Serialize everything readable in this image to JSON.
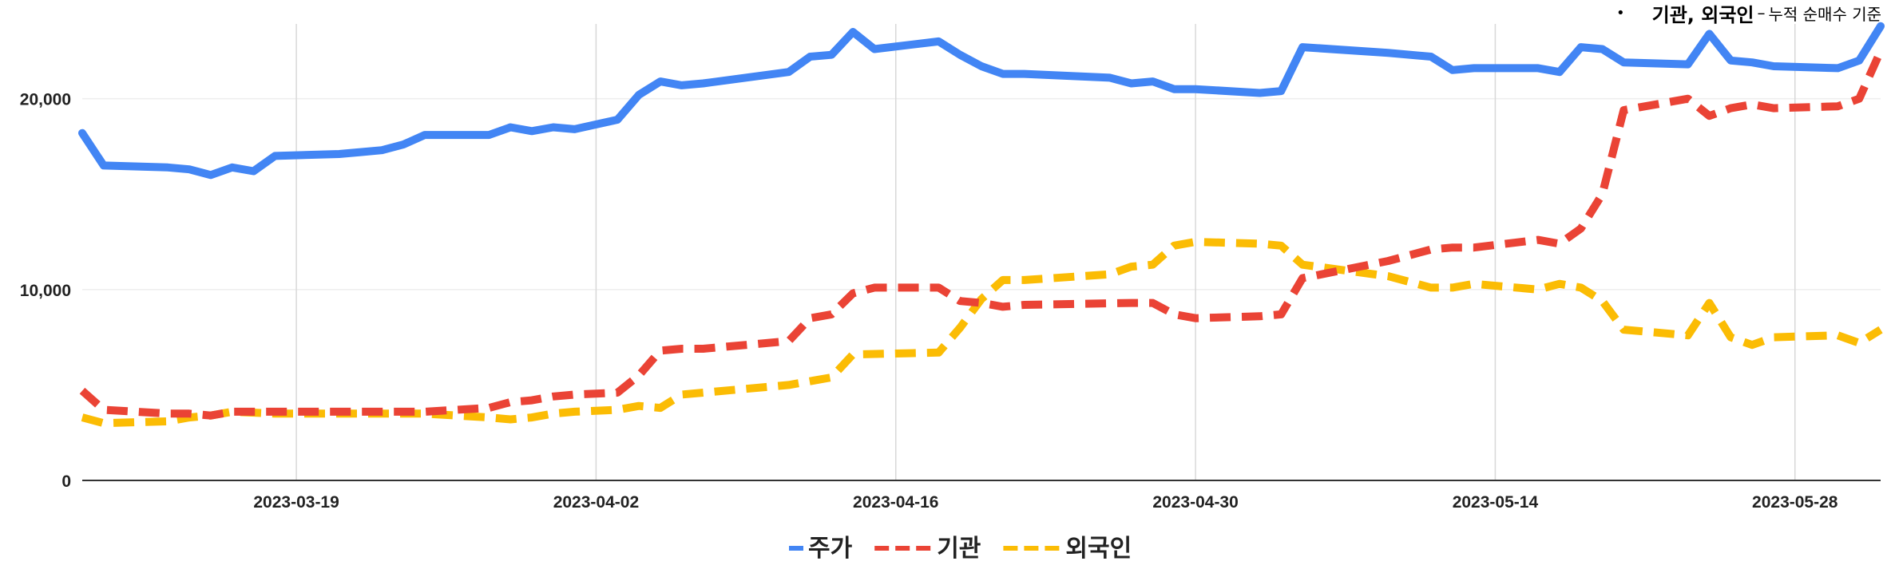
{
  "annotation": {
    "main": "기관, 외국인",
    "dash": "–",
    "sub": "누적 순매수 기준"
  },
  "chart_data": {
    "type": "line",
    "x_ticks": [
      "2023-03-19",
      "2023-04-02",
      "2023-04-16",
      "2023-04-30",
      "2023-05-14",
      "2023-05-28"
    ],
    "y_ticks": [
      "0",
      "10,000",
      "20,000"
    ],
    "ylim": [
      0,
      24000
    ],
    "xlim": [
      "2023-03-09",
      "2023-06-01"
    ],
    "grid": true,
    "legend_position": "bottom",
    "series": [
      {
        "name": "주가",
        "color": "#4285F4",
        "style": "solid",
        "points": [
          [
            "2023-03-09",
            18200
          ],
          [
            "2023-03-10",
            16500
          ],
          [
            "2023-03-13",
            16400
          ],
          [
            "2023-03-14",
            16300
          ],
          [
            "2023-03-15",
            16000
          ],
          [
            "2023-03-16",
            16400
          ],
          [
            "2023-03-17",
            16200
          ],
          [
            "2023-03-18",
            17000
          ],
          [
            "2023-03-21",
            17100
          ],
          [
            "2023-03-22",
            17200
          ],
          [
            "2023-03-23",
            17300
          ],
          [
            "2023-03-24",
            17600
          ],
          [
            "2023-03-25",
            18100
          ],
          [
            "2023-03-28",
            18100
          ],
          [
            "2023-03-29",
            18500
          ],
          [
            "2023-03-30",
            18300
          ],
          [
            "2023-03-31",
            18500
          ],
          [
            "2023-04-01",
            18400
          ],
          [
            "2023-04-03",
            18900
          ],
          [
            "2023-04-04",
            20200
          ],
          [
            "2023-04-05",
            20900
          ],
          [
            "2023-04-06",
            20700
          ],
          [
            "2023-04-07",
            20800
          ],
          [
            "2023-04-11",
            21400
          ],
          [
            "2023-04-12",
            22200
          ],
          [
            "2023-04-13",
            22300
          ],
          [
            "2023-04-14",
            23500
          ],
          [
            "2023-04-15",
            22600
          ],
          [
            "2023-04-18",
            23000
          ],
          [
            "2023-04-19",
            22300
          ],
          [
            "2023-04-20",
            21700
          ],
          [
            "2023-04-21",
            21300
          ],
          [
            "2023-04-22",
            21300
          ],
          [
            "2023-04-26",
            21100
          ],
          [
            "2023-04-27",
            20800
          ],
          [
            "2023-04-28",
            20900
          ],
          [
            "2023-04-29",
            20500
          ],
          [
            "2023-04-30",
            20500
          ],
          [
            "2023-05-03",
            20300
          ],
          [
            "2023-05-04",
            20400
          ],
          [
            "2023-05-05",
            22700
          ],
          [
            "2023-05-09",
            22400
          ],
          [
            "2023-05-11",
            22200
          ],
          [
            "2023-05-12",
            21500
          ],
          [
            "2023-05-13",
            21600
          ],
          [
            "2023-05-16",
            21600
          ],
          [
            "2023-05-17",
            21400
          ],
          [
            "2023-05-18",
            22700
          ],
          [
            "2023-05-19",
            22600
          ],
          [
            "2023-05-20",
            21900
          ],
          [
            "2023-05-23",
            21800
          ],
          [
            "2023-05-24",
            23400
          ],
          [
            "2023-05-25",
            22000
          ],
          [
            "2023-05-26",
            21900
          ],
          [
            "2023-05-27",
            21700
          ],
          [
            "2023-05-30",
            21600
          ],
          [
            "2023-05-31",
            22000
          ],
          [
            "2023-06-01",
            23800
          ]
        ]
      },
      {
        "name": "기관",
        "color": "#EA4335",
        "style": "dashed",
        "points": [
          [
            "2023-03-09",
            4700
          ],
          [
            "2023-03-10",
            3700
          ],
          [
            "2023-03-13",
            3500
          ],
          [
            "2023-03-14",
            3500
          ],
          [
            "2023-03-15",
            3400
          ],
          [
            "2023-03-16",
            3600
          ],
          [
            "2023-03-18",
            3600
          ],
          [
            "2023-03-25",
            3600
          ],
          [
            "2023-03-28",
            3800
          ],
          [
            "2023-03-29",
            4100
          ],
          [
            "2023-03-30",
            4200
          ],
          [
            "2023-03-31",
            4400
          ],
          [
            "2023-04-01",
            4500
          ],
          [
            "2023-04-03",
            4600
          ],
          [
            "2023-04-04",
            5500
          ],
          [
            "2023-04-05",
            6800
          ],
          [
            "2023-04-06",
            6900
          ],
          [
            "2023-04-07",
            6900
          ],
          [
            "2023-04-11",
            7300
          ],
          [
            "2023-04-12",
            8500
          ],
          [
            "2023-04-13",
            8700
          ],
          [
            "2023-04-14",
            9800
          ],
          [
            "2023-04-15",
            10100
          ],
          [
            "2023-04-18",
            10100
          ],
          [
            "2023-04-19",
            9400
          ],
          [
            "2023-04-20",
            9300
          ],
          [
            "2023-04-21",
            9100
          ],
          [
            "2023-04-22",
            9200
          ],
          [
            "2023-04-27",
            9300
          ],
          [
            "2023-04-28",
            9300
          ],
          [
            "2023-04-29",
            8700
          ],
          [
            "2023-04-30",
            8500
          ],
          [
            "2023-05-03",
            8600
          ],
          [
            "2023-05-04",
            8700
          ],
          [
            "2023-05-05",
            10600
          ],
          [
            "2023-05-09",
            11500
          ],
          [
            "2023-05-11",
            12100
          ],
          [
            "2023-05-12",
            12200
          ],
          [
            "2023-05-13",
            12200
          ],
          [
            "2023-05-16",
            12600
          ],
          [
            "2023-05-17",
            12400
          ],
          [
            "2023-05-18",
            13200
          ],
          [
            "2023-05-19",
            15000
          ],
          [
            "2023-05-20",
            19400
          ],
          [
            "2023-05-23",
            20000
          ],
          [
            "2023-05-24",
            19100
          ],
          [
            "2023-05-25",
            19500
          ],
          [
            "2023-05-26",
            19700
          ],
          [
            "2023-05-27",
            19500
          ],
          [
            "2023-05-30",
            19600
          ],
          [
            "2023-05-31",
            20000
          ],
          [
            "2023-06-01",
            22500
          ]
        ]
      },
      {
        "name": "외국인",
        "color": "#FBBC04",
        "style": "dashed",
        "points": [
          [
            "2023-03-09",
            3300
          ],
          [
            "2023-03-10",
            3000
          ],
          [
            "2023-03-13",
            3100
          ],
          [
            "2023-03-14",
            3300
          ],
          [
            "2023-03-15",
            3400
          ],
          [
            "2023-03-16",
            3600
          ],
          [
            "2023-03-18",
            3500
          ],
          [
            "2023-03-25",
            3500
          ],
          [
            "2023-03-28",
            3300
          ],
          [
            "2023-03-29",
            3200
          ],
          [
            "2023-03-30",
            3300
          ],
          [
            "2023-03-31",
            3500
          ],
          [
            "2023-04-01",
            3600
          ],
          [
            "2023-04-03",
            3700
          ],
          [
            "2023-04-04",
            3900
          ],
          [
            "2023-04-05",
            3800
          ],
          [
            "2023-04-06",
            4500
          ],
          [
            "2023-04-11",
            5000
          ],
          [
            "2023-04-13",
            5400
          ],
          [
            "2023-04-14",
            6600
          ],
          [
            "2023-04-18",
            6700
          ],
          [
            "2023-04-19",
            8000
          ],
          [
            "2023-04-20",
            9500
          ],
          [
            "2023-04-21",
            10500
          ],
          [
            "2023-04-22",
            10500
          ],
          [
            "2023-04-26",
            10800
          ],
          [
            "2023-04-27",
            11200
          ],
          [
            "2023-04-28",
            11300
          ],
          [
            "2023-04-29",
            12300
          ],
          [
            "2023-04-30",
            12500
          ],
          [
            "2023-05-03",
            12400
          ],
          [
            "2023-05-04",
            12300
          ],
          [
            "2023-05-05",
            11300
          ],
          [
            "2023-05-09",
            10700
          ],
          [
            "2023-05-11",
            10100
          ],
          [
            "2023-05-12",
            10100
          ],
          [
            "2023-05-13",
            10300
          ],
          [
            "2023-05-16",
            10000
          ],
          [
            "2023-05-17",
            10300
          ],
          [
            "2023-05-18",
            10100
          ],
          [
            "2023-05-19",
            9400
          ],
          [
            "2023-05-20",
            7900
          ],
          [
            "2023-05-23",
            7600
          ],
          [
            "2023-05-24",
            9300
          ],
          [
            "2023-05-25",
            7500
          ],
          [
            "2023-05-26",
            7100
          ],
          [
            "2023-05-27",
            7500
          ],
          [
            "2023-05-30",
            7600
          ],
          [
            "2023-05-31",
            7200
          ],
          [
            "2023-06-01",
            7900
          ]
        ]
      }
    ]
  }
}
